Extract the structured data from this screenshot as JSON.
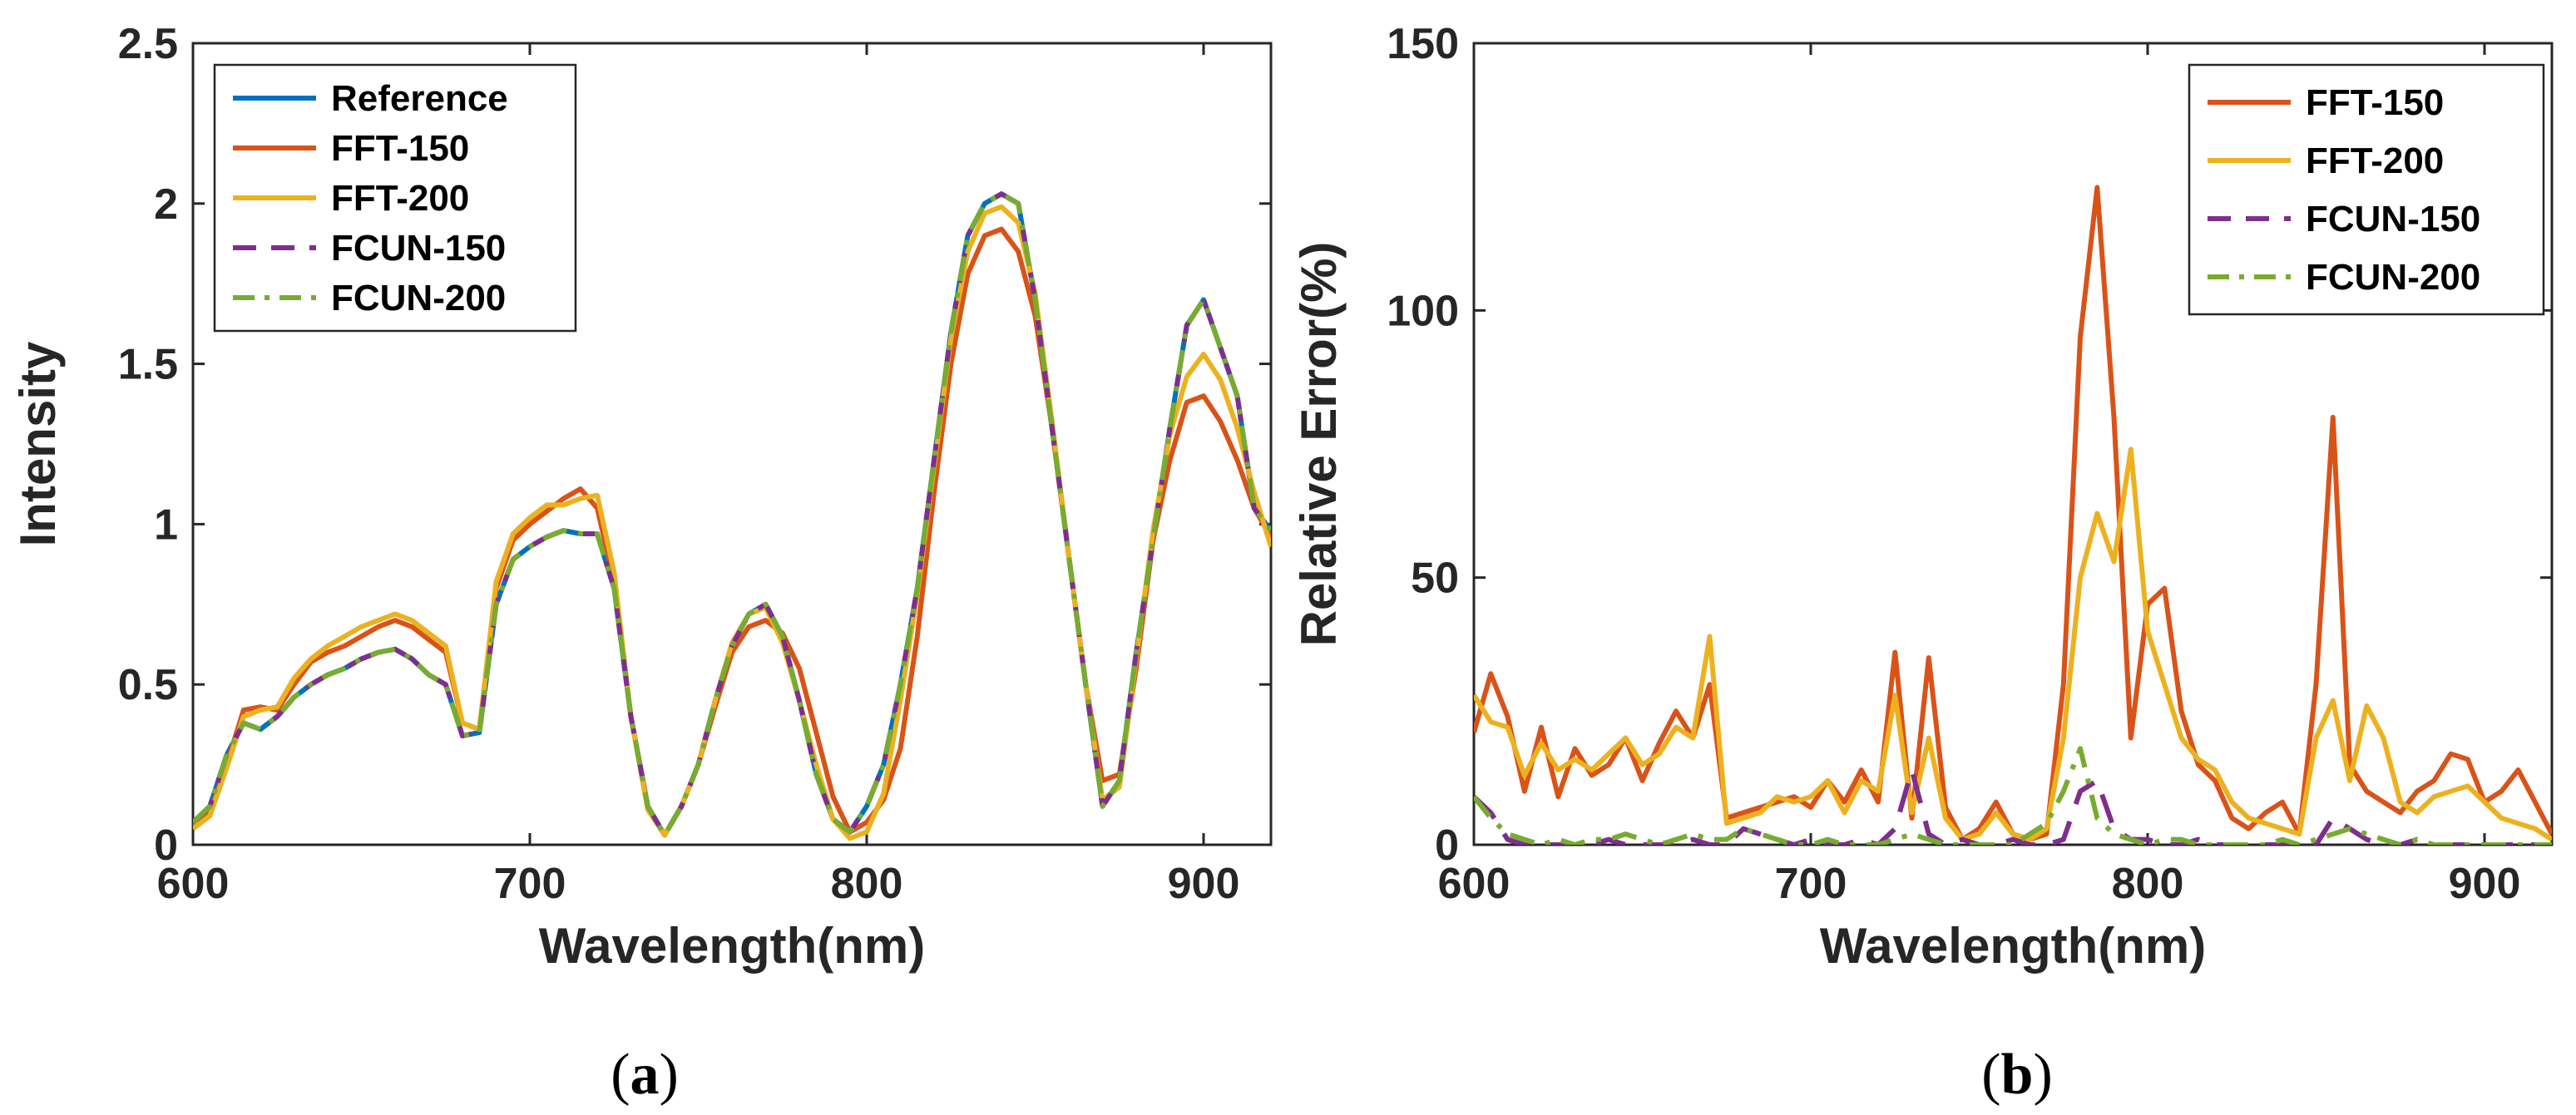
{
  "chart_data": [
    {
      "type": "line",
      "caption_open": "(",
      "caption_letter": "a",
      "caption_close": ")",
      "xlabel": "Wavelength(nm)",
      "ylabel": "Intensity",
      "xlim": [
        600,
        920
      ],
      "ylim": [
        0,
        2.5
      ],
      "xticks": [
        600,
        700,
        800,
        900
      ],
      "yticks": [
        0,
        0.5,
        1,
        1.5,
        2,
        2.5
      ],
      "ytick_labels": [
        "0",
        "0.5",
        "1",
        "1.5",
        "2",
        "2.5"
      ],
      "legend_position": "top-left",
      "x": [
        600,
        605,
        610,
        615,
        620,
        625,
        630,
        635,
        640,
        645,
        650,
        655,
        660,
        665,
        670,
        675,
        680,
        685,
        690,
        695,
        700,
        705,
        710,
        715,
        720,
        725,
        730,
        735,
        740,
        745,
        750,
        755,
        760,
        765,
        770,
        775,
        780,
        785,
        790,
        795,
        800,
        805,
        810,
        815,
        820,
        825,
        830,
        835,
        840,
        845,
        850,
        855,
        860,
        865,
        870,
        875,
        880,
        885,
        890,
        895,
        900,
        905,
        910,
        915,
        920
      ],
      "series": [
        {
          "name": "Reference",
          "color": "#0072BD",
          "dash": "solid",
          "values": [
            0.07,
            0.12,
            0.28,
            0.38,
            0.36,
            0.4,
            0.46,
            0.5,
            0.53,
            0.55,
            0.58,
            0.6,
            0.61,
            0.58,
            0.53,
            0.5,
            0.34,
            0.35,
            0.75,
            0.89,
            0.93,
            0.96,
            0.98,
            0.97,
            0.97,
            0.8,
            0.4,
            0.12,
            0.03,
            0.12,
            0.25,
            0.45,
            0.62,
            0.72,
            0.75,
            0.65,
            0.45,
            0.22,
            0.08,
            0.04,
            0.12,
            0.25,
            0.5,
            0.8,
            1.2,
            1.6,
            1.9,
            2.0,
            2.03,
            2.0,
            1.7,
            1.3,
            0.9,
            0.5,
            0.12,
            0.2,
            0.6,
            0.95,
            1.3,
            1.62,
            1.7,
            1.55,
            1.4,
            1.05,
            0.98
          ]
        },
        {
          "name": "FFT-150",
          "color": "#D95319",
          "dash": "solid",
          "values": [
            0.06,
            0.1,
            0.25,
            0.42,
            0.43,
            0.42,
            0.5,
            0.57,
            0.6,
            0.62,
            0.65,
            0.68,
            0.7,
            0.68,
            0.64,
            0.6,
            0.38,
            0.36,
            0.8,
            0.95,
            1.0,
            1.04,
            1.08,
            1.11,
            1.05,
            0.82,
            0.4,
            0.12,
            0.03,
            0.12,
            0.25,
            0.43,
            0.6,
            0.68,
            0.7,
            0.66,
            0.55,
            0.35,
            0.15,
            0.04,
            0.07,
            0.14,
            0.3,
            0.65,
            1.1,
            1.5,
            1.78,
            1.9,
            1.92,
            1.85,
            1.65,
            1.3,
            0.9,
            0.5,
            0.2,
            0.22,
            0.55,
            0.95,
            1.2,
            1.38,
            1.4,
            1.32,
            1.2,
            1.05,
            0.96
          ]
        },
        {
          "name": "FFT-200",
          "color": "#EDB120",
          "dash": "solid",
          "values": [
            0.05,
            0.09,
            0.24,
            0.4,
            0.42,
            0.43,
            0.52,
            0.58,
            0.62,
            0.65,
            0.68,
            0.7,
            0.72,
            0.7,
            0.66,
            0.62,
            0.38,
            0.36,
            0.82,
            0.97,
            1.02,
            1.06,
            1.06,
            1.08,
            1.09,
            0.85,
            0.4,
            0.11,
            0.03,
            0.12,
            0.25,
            0.45,
            0.63,
            0.72,
            0.74,
            0.63,
            0.45,
            0.25,
            0.08,
            0.02,
            0.04,
            0.16,
            0.45,
            0.78,
            1.18,
            1.58,
            1.85,
            1.97,
            1.99,
            1.94,
            1.72,
            1.32,
            0.9,
            0.5,
            0.14,
            0.18,
            0.58,
            0.98,
            1.28,
            1.46,
            1.53,
            1.45,
            1.3,
            1.1,
            0.93
          ]
        },
        {
          "name": "FCUN-150",
          "color": "#7E2F8E",
          "dash": "dash",
          "values": [
            0.07,
            0.12,
            0.28,
            0.38,
            0.36,
            0.4,
            0.46,
            0.5,
            0.53,
            0.55,
            0.58,
            0.6,
            0.61,
            0.58,
            0.53,
            0.5,
            0.34,
            0.35,
            0.75,
            0.89,
            0.93,
            0.96,
            0.98,
            0.97,
            0.97,
            0.8,
            0.4,
            0.12,
            0.03,
            0.12,
            0.25,
            0.45,
            0.62,
            0.72,
            0.75,
            0.65,
            0.45,
            0.22,
            0.08,
            0.04,
            0.12,
            0.25,
            0.5,
            0.8,
            1.2,
            1.6,
            1.9,
            2.0,
            2.03,
            2.0,
            1.7,
            1.3,
            0.9,
            0.5,
            0.12,
            0.2,
            0.6,
            0.95,
            1.3,
            1.62,
            1.7,
            1.55,
            1.4,
            1.05,
            0.98
          ]
        },
        {
          "name": "FCUN-200",
          "color": "#77AC30",
          "dash": "dashdot",
          "values": [
            0.07,
            0.12,
            0.28,
            0.38,
            0.36,
            0.4,
            0.46,
            0.5,
            0.53,
            0.55,
            0.58,
            0.6,
            0.61,
            0.58,
            0.53,
            0.5,
            0.34,
            0.35,
            0.75,
            0.89,
            0.93,
            0.96,
            0.98,
            0.97,
            0.97,
            0.8,
            0.4,
            0.12,
            0.03,
            0.12,
            0.25,
            0.45,
            0.62,
            0.72,
            0.75,
            0.65,
            0.45,
            0.22,
            0.08,
            0.04,
            0.12,
            0.25,
            0.5,
            0.8,
            1.2,
            1.6,
            1.9,
            2.0,
            2.03,
            2.0,
            1.7,
            1.3,
            0.9,
            0.5,
            0.12,
            0.2,
            0.6,
            0.95,
            1.3,
            1.62,
            1.7,
            1.55,
            1.4,
            1.05,
            0.98
          ]
        }
      ]
    },
    {
      "type": "line",
      "caption_open": "(",
      "caption_letter": "b",
      "caption_close": ")",
      "xlabel": "Wavelength(nm)",
      "ylabel": "Relative Error(%)",
      "xlim": [
        600,
        920
      ],
      "ylim": [
        0,
        150
      ],
      "xticks": [
        600,
        700,
        800,
        900
      ],
      "yticks": [
        0,
        50,
        100,
        150
      ],
      "ytick_labels": [
        "0",
        "50",
        "100",
        "150"
      ],
      "legend_position": "top-right",
      "x": [
        600,
        605,
        610,
        615,
        620,
        625,
        630,
        635,
        640,
        645,
        650,
        655,
        660,
        665,
        670,
        675,
        680,
        685,
        690,
        695,
        700,
        705,
        710,
        715,
        720,
        725,
        730,
        735,
        740,
        745,
        750,
        755,
        760,
        765,
        770,
        775,
        780,
        785,
        790,
        795,
        800,
        805,
        810,
        815,
        820,
        825,
        830,
        835,
        840,
        845,
        850,
        855,
        860,
        865,
        870,
        875,
        880,
        885,
        890,
        895,
        900,
        905,
        910,
        915,
        920
      ],
      "series": [
        {
          "name": "FFT-150",
          "color": "#D95319",
          "dash": "solid",
          "values": [
            21,
            32,
            24,
            10,
            22,
            9,
            18,
            13,
            15,
            20,
            12,
            19,
            25,
            20,
            30,
            5,
            6,
            7,
            8,
            9,
            7,
            12,
            8,
            14,
            8,
            36,
            5,
            35,
            7,
            1,
            3,
            8,
            2,
            1,
            2,
            30,
            95,
            123,
            80,
            20,
            45,
            48,
            25,
            15,
            12,
            5,
            3,
            6,
            8,
            2,
            30,
            80,
            15,
            10,
            8,
            6,
            10,
            12,
            17,
            16,
            8,
            10,
            14,
            8,
            2
          ]
        },
        {
          "name": "FFT-200",
          "color": "#EDB120",
          "dash": "solid",
          "values": [
            28,
            23,
            22,
            13,
            19,
            14,
            16,
            14,
            17,
            20,
            15,
            17,
            22,
            20,
            39,
            4,
            5,
            6,
            9,
            8,
            9,
            12,
            6,
            12,
            10,
            28,
            6,
            20,
            5,
            1,
            2,
            6,
            2,
            1,
            3,
            20,
            50,
            62,
            53,
            74,
            40,
            30,
            20,
            16,
            14,
            8,
            5,
            4,
            3,
            2,
            20,
            27,
            12,
            26,
            20,
            8,
            6,
            9,
            10,
            11,
            8,
            5,
            4,
            3,
            1
          ]
        },
        {
          "name": "FCUN-150",
          "color": "#7E2F8E",
          "dash": "dash",
          "values": [
            9,
            6,
            1,
            0,
            0,
            0,
            0,
            0,
            1,
            0,
            0,
            0,
            0,
            1,
            0,
            0,
            3,
            2,
            1,
            0,
            1,
            0,
            0,
            1,
            0,
            3,
            14,
            2,
            0,
            1,
            0,
            0,
            1,
            0,
            0,
            1,
            10,
            12,
            3,
            1,
            1,
            0,
            0,
            1,
            0,
            0,
            0,
            0,
            0,
            0,
            0,
            5,
            3,
            1,
            0,
            0,
            1,
            0,
            0,
            0,
            0,
            0,
            0,
            0,
            0
          ]
        },
        {
          "name": "FCUN-200",
          "color": "#77AC30",
          "dash": "dashdot",
          "values": [
            9,
            5,
            2,
            1,
            0,
            1,
            0,
            1,
            1,
            2,
            1,
            0,
            1,
            2,
            1,
            1,
            3,
            2,
            1,
            0,
            0,
            1,
            0,
            0,
            0,
            1,
            2,
            1,
            0,
            0,
            0,
            0,
            0,
            2,
            4,
            10,
            18,
            5,
            2,
            1,
            0,
            1,
            1,
            0,
            0,
            0,
            0,
            0,
            1,
            0,
            1,
            2,
            3,
            2,
            1,
            0,
            1,
            0,
            0,
            0,
            0,
            0,
            0,
            0,
            0
          ]
        }
      ]
    }
  ]
}
